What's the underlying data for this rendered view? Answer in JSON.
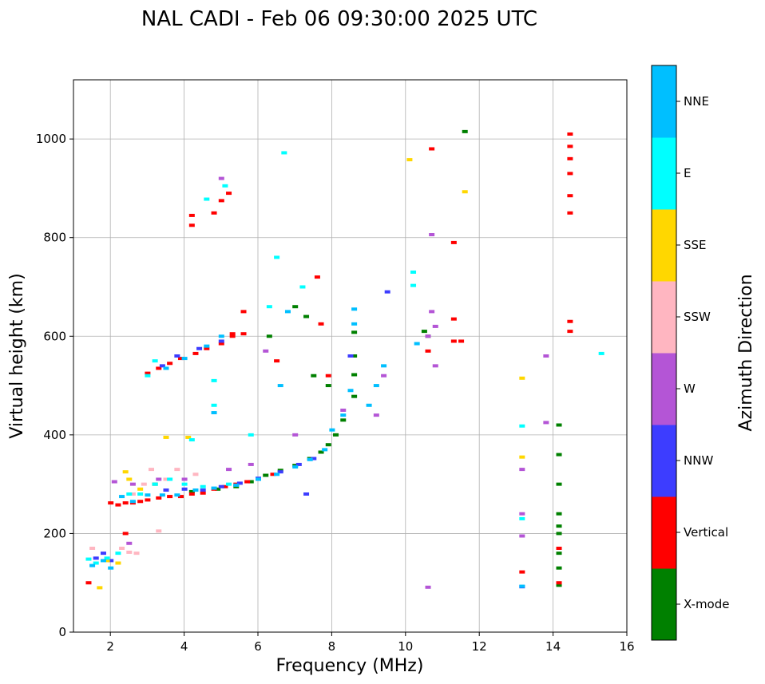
{
  "chart_data": {
    "type": "scatter",
    "title": "NAL CADI - Feb 06 09:30:00 2025 UTC",
    "xlabel": "Frequency (MHz)",
    "ylabel": "Virtual height (km)",
    "xlim": [
      1,
      16
    ],
    "ylim": [
      0,
      1120
    ],
    "xticks": [
      2,
      4,
      6,
      8,
      10,
      12,
      14,
      16
    ],
    "yticks": [
      0,
      200,
      400,
      600,
      800,
      1000
    ],
    "xtick_labels": [
      "2",
      "4",
      "6",
      "8",
      "10",
      "12",
      "14",
      "16"
    ],
    "ytick_labels": [
      "0",
      "200",
      "400",
      "600",
      "800",
      "1000"
    ],
    "grid": true,
    "colorbar": {
      "title": "Azimuth Direction",
      "categories": [
        {
          "label": "X-mode",
          "color": "#008000"
        },
        {
          "label": "Vertical",
          "color": "#ff0000"
        },
        {
          "label": "NNW",
          "color": "#3d3dff"
        },
        {
          "label": "W",
          "color": "#b455d6"
        },
        {
          "label": "SSW",
          "color": "#ffb6c1"
        },
        {
          "label": "SSE",
          "color": "#ffd700"
        },
        {
          "label": "E",
          "color": "#00ffff"
        },
        {
          "label": "NNE",
          "color": "#00bfff"
        }
      ]
    },
    "series": [
      {
        "name": "X-mode",
        "points": [
          [
            4.9,
            290
          ],
          [
            5.4,
            295
          ],
          [
            5.8,
            305
          ],
          [
            6.2,
            318
          ],
          [
            6.6,
            328
          ],
          [
            7.0,
            338
          ],
          [
            7.4,
            352
          ],
          [
            7.7,
            365
          ],
          [
            7.9,
            380
          ],
          [
            8.1,
            400
          ],
          [
            8.3,
            430
          ],
          [
            8.6,
            478
          ],
          [
            8.6,
            522
          ],
          [
            8.6,
            560
          ],
          [
            8.6,
            608
          ],
          [
            6.3,
            600
          ],
          [
            7.0,
            660
          ],
          [
            7.3,
            640
          ],
          [
            7.5,
            520
          ],
          [
            7.9,
            500
          ],
          [
            10.6,
            600
          ],
          [
            10.5,
            610
          ],
          [
            14.15,
            240
          ],
          [
            14.15,
            300
          ],
          [
            14.15,
            360
          ],
          [
            14.15,
            420
          ],
          [
            14.15,
            215
          ],
          [
            14.15,
            200
          ],
          [
            14.15,
            160
          ],
          [
            14.15,
            130
          ],
          [
            14.15,
            95
          ],
          [
            11.6,
            1015
          ],
          [
            3.2,
            300
          ],
          [
            4.2,
            285
          ]
        ]
      },
      {
        "name": "Vertical",
        "points": [
          [
            2.0,
            262
          ],
          [
            2.2,
            258
          ],
          [
            2.4,
            262
          ],
          [
            2.6,
            262
          ],
          [
            2.8,
            265
          ],
          [
            3.0,
            268
          ],
          [
            3.3,
            272
          ],
          [
            3.6,
            275
          ],
          [
            3.9,
            275
          ],
          [
            4.2,
            280
          ],
          [
            4.5,
            282
          ],
          [
            4.8,
            290
          ],
          [
            5.1,
            295
          ],
          [
            5.4,
            300
          ],
          [
            5.7,
            305
          ],
          [
            6.0,
            310
          ],
          [
            6.4,
            320
          ],
          [
            3.0,
            525
          ],
          [
            3.3,
            535
          ],
          [
            3.6,
            545
          ],
          [
            3.9,
            555
          ],
          [
            4.3,
            565
          ],
          [
            4.6,
            575
          ],
          [
            5.0,
            585
          ],
          [
            5.3,
            600
          ],
          [
            5.6,
            605
          ],
          [
            4.2,
            825
          ],
          [
            4.8,
            850
          ],
          [
            5.0,
            875
          ],
          [
            5.2,
            890
          ],
          [
            4.2,
            845
          ],
          [
            7.6,
            720
          ],
          [
            7.7,
            625
          ],
          [
            7.9,
            520
          ],
          [
            10.6,
            570
          ],
          [
            11.3,
            635
          ],
          [
            11.3,
            590
          ],
          [
            11.5,
            590
          ],
          [
            11.3,
            790
          ],
          [
            10.7,
            980
          ],
          [
            14.45,
            1010
          ],
          [
            14.45,
            985
          ],
          [
            14.45,
            960
          ],
          [
            14.45,
            930
          ],
          [
            14.45,
            885
          ],
          [
            14.45,
            850
          ],
          [
            14.45,
            630
          ],
          [
            14.45,
            610
          ],
          [
            14.15,
            170
          ],
          [
            14.15,
            100
          ],
          [
            13.15,
            122
          ],
          [
            1.4,
            100
          ],
          [
            2.4,
            200
          ],
          [
            6.5,
            550
          ],
          [
            5.6,
            650
          ],
          [
            5.3,
            605
          ]
        ]
      },
      {
        "name": "NNW",
        "points": [
          [
            3.5,
            288
          ],
          [
            4.0,
            290
          ],
          [
            4.5,
            288
          ],
          [
            5.0,
            295
          ],
          [
            5.5,
            302
          ],
          [
            6.0,
            312
          ],
          [
            6.6,
            325
          ],
          [
            7.1,
            340
          ],
          [
            7.5,
            352
          ],
          [
            3.4,
            540
          ],
          [
            3.8,
            560
          ],
          [
            4.4,
            575
          ],
          [
            5.0,
            590
          ],
          [
            1.6,
            150
          ],
          [
            1.8,
            160
          ],
          [
            2.0,
            145
          ],
          [
            13.15,
            92
          ],
          [
            9.5,
            690
          ],
          [
            8.5,
            560
          ],
          [
            7.3,
            280
          ]
        ]
      },
      {
        "name": "W",
        "points": [
          [
            2.1,
            305
          ],
          [
            2.6,
            300
          ],
          [
            3.3,
            310
          ],
          [
            4.0,
            310
          ],
          [
            5.2,
            330
          ],
          [
            5.8,
            340
          ],
          [
            7.0,
            400
          ],
          [
            8.3,
            450
          ],
          [
            9.2,
            440
          ],
          [
            9.4,
            520
          ],
          [
            10.6,
            600
          ],
          [
            10.7,
            650
          ],
          [
            10.8,
            620
          ],
          [
            10.6,
            91
          ],
          [
            10.7,
            806
          ],
          [
            13.15,
            195
          ],
          [
            13.15,
            240
          ],
          [
            13.15,
            330
          ],
          [
            13.8,
            560
          ],
          [
            13.8,
            425
          ],
          [
            5.0,
            920
          ],
          [
            2.5,
            180
          ],
          [
            6.2,
            570
          ],
          [
            10.8,
            540
          ]
        ]
      },
      {
        "name": "SSW",
        "points": [
          [
            2.5,
            162
          ],
          [
            2.7,
            160
          ],
          [
            2.9,
            300
          ],
          [
            3.1,
            330
          ],
          [
            3.5,
            310
          ],
          [
            2.3,
            170
          ],
          [
            3.3,
            205
          ],
          [
            2.6,
            280
          ],
          [
            3.8,
            330
          ],
          [
            4.3,
            320
          ],
          [
            1.5,
            170
          ]
        ]
      },
      {
        "name": "SSE",
        "points": [
          [
            1.9,
            145
          ],
          [
            2.2,
            140
          ],
          [
            2.4,
            325
          ],
          [
            2.5,
            310
          ],
          [
            2.8,
            290
          ],
          [
            3.5,
            395
          ],
          [
            4.1,
            395
          ],
          [
            10.1,
            958
          ],
          [
            11.6,
            893
          ],
          [
            13.15,
            515
          ],
          [
            13.15,
            355
          ],
          [
            1.7,
            90
          ]
        ]
      },
      {
        "name": "E",
        "points": [
          [
            1.4,
            148
          ],
          [
            1.6,
            140
          ],
          [
            1.9,
            150
          ],
          [
            2.2,
            160
          ],
          [
            2.5,
            280
          ],
          [
            2.8,
            280
          ],
          [
            3.2,
            300
          ],
          [
            3.6,
            310
          ],
          [
            4.0,
            300
          ],
          [
            4.5,
            295
          ],
          [
            5.2,
            300
          ],
          [
            4.8,
            460
          ],
          [
            4.8,
            510
          ],
          [
            6.7,
            972
          ],
          [
            5.1,
            905
          ],
          [
            4.6,
            878
          ],
          [
            6.5,
            760
          ],
          [
            7.2,
            700
          ],
          [
            10.2,
            730
          ],
          [
            10.2,
            703
          ],
          [
            13.15,
            230
          ],
          [
            13.15,
            418
          ],
          [
            15.3,
            565
          ],
          [
            5.8,
            400
          ],
          [
            6.3,
            660
          ],
          [
            4.2,
            390
          ],
          [
            3.2,
            550
          ],
          [
            3.0,
            520
          ]
        ]
      },
      {
        "name": "NNE",
        "points": [
          [
            1.5,
            135
          ],
          [
            1.8,
            145
          ],
          [
            2.0,
            130
          ],
          [
            2.3,
            275
          ],
          [
            2.6,
            265
          ],
          [
            3.0,
            278
          ],
          [
            3.4,
            278
          ],
          [
            3.8,
            278
          ],
          [
            4.3,
            288
          ],
          [
            4.8,
            292
          ],
          [
            5.4,
            298
          ],
          [
            6.0,
            310
          ],
          [
            6.5,
            320
          ],
          [
            7.0,
            335
          ],
          [
            7.4,
            350
          ],
          [
            7.8,
            370
          ],
          [
            8.0,
            410
          ],
          [
            8.3,
            440
          ],
          [
            8.5,
            490
          ],
          [
            9.0,
            460
          ],
          [
            9.2,
            500
          ],
          [
            9.4,
            540
          ],
          [
            8.6,
            625
          ],
          [
            8.6,
            655
          ],
          [
            6.6,
            500
          ],
          [
            3.5,
            535
          ],
          [
            4.0,
            555
          ],
          [
            4.6,
            580
          ],
          [
            5.0,
            600
          ],
          [
            6.8,
            650
          ],
          [
            10.3,
            585
          ],
          [
            13.15,
            93
          ],
          [
            4.8,
            445
          ]
        ]
      }
    ]
  }
}
